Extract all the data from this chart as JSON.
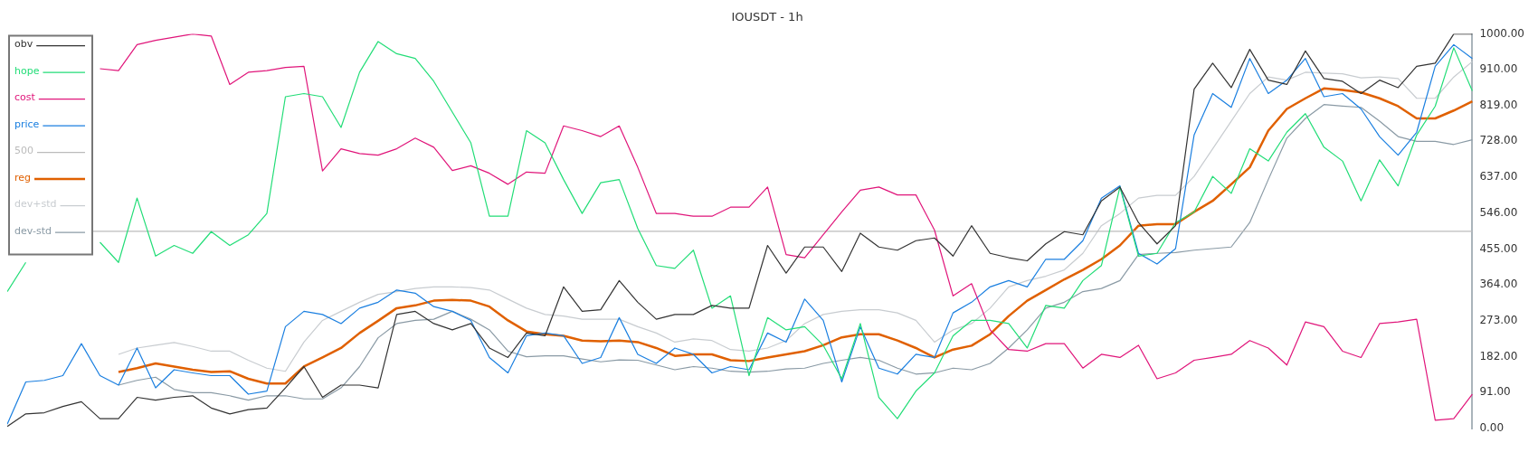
{
  "chart_data": {
    "type": "line",
    "title": "IOUSDT - 1h",
    "categories": [
      null,
      null,
      null,
      null,
      null,
      null,
      null,
      null,
      null,
      null,
      null,
      null,
      null,
      null,
      null,
      null,
      null,
      null,
      null,
      null,
      null,
      null,
      null,
      null,
      null,
      null,
      null,
      null,
      null,
      null,
      null,
      null,
      null,
      null,
      null,
      null,
      null,
      null,
      null,
      null,
      null,
      null,
      null,
      null,
      null,
      null,
      null,
      null,
      null,
      null,
      null,
      null,
      null,
      null,
      null,
      null,
      null,
      null,
      null,
      null,
      null,
      null,
      null,
      null,
      null,
      null,
      null,
      null,
      null,
      null,
      null,
      null,
      null,
      null,
      null,
      null,
      null,
      null,
      null,
      null
    ],
    "ylim": [
      0,
      1000
    ],
    "yticks": [
      {
        "value": 0,
        "label": "0.00"
      },
      {
        "value": 91,
        "label": "91.00"
      },
      {
        "value": 182,
        "label": "182.00"
      },
      {
        "value": 273,
        "label": "273.00"
      },
      {
        "value": 364,
        "label": "364.00"
      },
      {
        "value": 455,
        "label": "455.00"
      },
      {
        "value": 546,
        "label": "546.00"
      },
      {
        "value": 637,
        "label": "637.00"
      },
      {
        "value": 728,
        "label": "728.00"
      },
      {
        "value": 819,
        "label": "819.00"
      },
      {
        "value": 910,
        "label": "910.00"
      },
      {
        "value": 1000,
        "label": "1000.00"
      }
    ],
    "grid": false,
    "legend": "top left",
    "marker": "none",
    "line_style": "solid",
    "series": [
      {
        "name": "obv",
        "color": "#333333",
        "values": [
          5,
          37,
          40,
          56,
          68,
          25,
          25,
          79,
          72,
          79,
          83,
          52,
          37,
          48,
          52,
          103,
          157,
          79,
          110,
          110,
          103,
          289,
          297,
          266,
          250,
          266,
          204,
          180,
          242,
          235,
          359,
          297,
          301,
          375,
          320,
          277,
          289,
          289,
          312,
          305,
          305,
          464,
          394,
          460,
          460,
          398,
          495,
          460,
          452,
          476,
          483,
          437,
          514,
          444,
          433,
          425,
          468,
          499,
          491,
          577,
          612,
          522,
          468,
          514,
          860,
          926,
          864,
          961,
          883,
          872,
          957,
          887,
          880,
          849,
          883,
          864,
          918,
          926,
          1000,
          1000
        ]
      },
      {
        "name": "hope",
        "color": "#22dd77",
        "values": [
          347,
          421,
          null,
          null,
          null,
          472,
          421,
          584,
          437,
          464,
          444,
          499,
          464,
          491,
          545,
          841,
          849,
          841,
          763,
          903,
          981,
          950,
          938,
          880,
          802,
          724,
          538,
          538,
          755,
          724,
          631,
          545,
          623,
          631,
          507,
          413,
          406,
          452,
          305,
          336,
          134,
          281,
          250,
          258,
          211,
          126,
          266,
          79,
          25,
          95,
          141,
          235,
          274,
          274,
          266,
          204,
          312,
          305,
          375,
          413,
          612,
          437,
          444,
          522,
          549,
          639,
          596,
          709,
          678,
          751,
          798,
          713,
          678,
          577,
          681,
          615,
          744,
          817,
          965,
          856
        ]
      },
      {
        "name": "cost",
        "color": "#e0157a",
        "values": [
          null,
          null,
          null,
          null,
          null,
          912,
          907,
          973,
          984,
          992,
          1000,
          995,
          872,
          903,
          907,
          915,
          918,
          653,
          709,
          697,
          693,
          709,
          736,
          713,
          654,
          666,
          647,
          619,
          650,
          647,
          767,
          755,
          740,
          767,
          662,
          545,
          545,
          538,
          538,
          561,
          561,
          612,
          441,
          433,
          491,
          549,
          604,
          612,
          592,
          592,
          503,
          336,
          367,
          250,
          200,
          196,
          215,
          215,
          153,
          188,
          180,
          211,
          126,
          141,
          173,
          180,
          188,
          223,
          204,
          161,
          270,
          258,
          196,
          180,
          266,
          270,
          277,
          21,
          25,
          87
        ]
      },
      {
        "name": "price",
        "color": "#1a7fe0",
        "values": [
          11,
          118,
          122,
          134,
          215,
          134,
          110,
          204,
          103,
          149,
          141,
          134,
          134,
          87,
          95,
          258,
          297,
          289,
          266,
          305,
          320,
          351,
          343,
          309,
          297,
          274,
          180,
          141,
          235,
          242,
          235,
          165,
          180,
          281,
          188,
          165,
          204,
          188,
          141,
          157,
          149,
          242,
          219,
          328,
          274,
          118,
          258,
          153,
          138,
          188,
          180,
          293,
          320,
          359,
          375,
          359,
          429,
          429,
          476,
          584,
          615,
          444,
          417,
          456,
          744,
          849,
          814,
          938,
          849,
          883,
          938,
          841,
          849,
          810,
          740,
          693,
          751,
          918,
          973,
          938
        ]
      },
      {
        "name": "500",
        "color": "#bbbbbb",
        "values": [
          null,
          null,
          null,
          null,
          500,
          500,
          500,
          500,
          500,
          500,
          500,
          500,
          500,
          500,
          500,
          500,
          500,
          500,
          500,
          500,
          500,
          500,
          500,
          500,
          500,
          500,
          500,
          500,
          500,
          500,
          500,
          500,
          500,
          500,
          500,
          500,
          500,
          500,
          500,
          500,
          500,
          500,
          500,
          500,
          500,
          500,
          500,
          500,
          500,
          500,
          500,
          500,
          500,
          500,
          500,
          500,
          500,
          500,
          500,
          500,
          500,
          500,
          500,
          500,
          500,
          500,
          500,
          500,
          500,
          500,
          500,
          500,
          500,
          500,
          500,
          500,
          500,
          500,
          500,
          500
        ]
      },
      {
        "name": "reg",
        "color": "#e06000",
        "values": [
          null,
          null,
          null,
          null,
          null,
          null,
          143,
          153,
          165,
          157,
          149,
          143,
          145,
          126,
          114,
          114,
          157,
          180,
          204,
          242,
          273,
          305,
          312,
          324,
          326,
          324,
          309,
          274,
          246,
          239,
          235,
          223,
          221,
          223,
          219,
          204,
          184,
          188,
          188,
          173,
          171,
          180,
          188,
          196,
          211,
          231,
          239,
          239,
          223,
          204,
          180,
          200,
          210,
          239,
          285,
          324,
          351,
          378,
          402,
          429,
          464,
          514,
          518,
          518,
          549,
          577,
          619,
          662,
          755,
          810,
          837,
          862,
          858,
          852,
          837,
          817,
          786,
          786,
          806,
          829
        ]
      },
      {
        "name": "dev+std",
        "color": "#c8ccd0",
        "values": [
          null,
          null,
          null,
          null,
          null,
          null,
          188,
          204,
          211,
          218,
          208,
          196,
          196,
          173,
          153,
          145,
          219,
          274,
          297,
          320,
          340,
          347,
          355,
          359,
          359,
          357,
          351,
          328,
          305,
          289,
          285,
          277,
          277,
          277,
          258,
          242,
          219,
          227,
          223,
          200,
          196,
          204,
          223,
          266,
          289,
          297,
          301,
          301,
          293,
          274,
          219,
          250,
          266,
          305,
          359,
          375,
          386,
          402,
          444,
          514,
          545,
          584,
          591,
          591,
          639,
          709,
          779,
          849,
          891,
          883,
          903,
          901,
          899,
          889,
          891,
          887,
          837,
          837,
          891,
          930
        ]
      },
      {
        "name": "dev-std",
        "color": "#8a9aa5",
        "values": [
          null,
          null,
          null,
          null,
          null,
          null,
          110,
          122,
          130,
          99,
          91,
          91,
          83,
          72,
          83,
          83,
          75,
          75,
          103,
          157,
          230,
          266,
          274,
          277,
          297,
          277,
          250,
          196,
          182,
          184,
          184,
          176,
          169,
          174,
          173,
          161,
          149,
          157,
          153,
          145,
          143,
          145,
          151,
          153,
          165,
          173,
          180,
          173,
          153,
          138,
          141,
          153,
          149,
          165,
          204,
          250,
          305,
          320,
          347,
          355,
          375,
          441,
          444,
          446,
          452,
          456,
          460,
          522,
          631,
          736,
          786,
          821,
          817,
          814,
          779,
          740,
          728,
          728,
          720,
          732
        ]
      }
    ]
  }
}
